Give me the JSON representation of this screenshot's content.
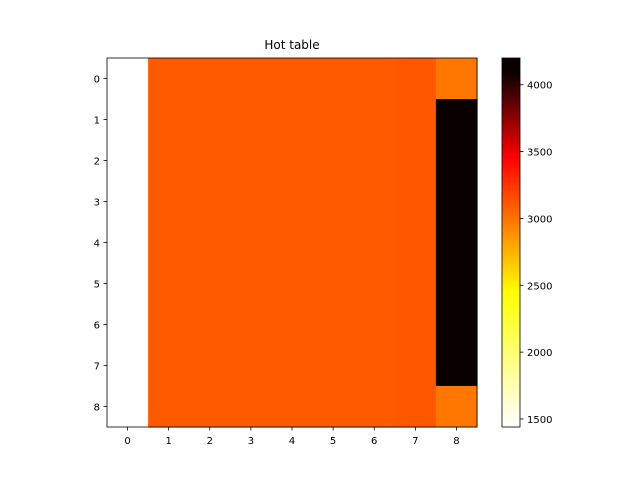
{
  "chart_data": {
    "type": "heatmap",
    "title": "Hot table",
    "xlabel": "",
    "ylabel": "",
    "colormap": "hot_r",
    "x_ticks": [
      "0",
      "1",
      "2",
      "3",
      "4",
      "5",
      "6",
      "7",
      "8"
    ],
    "y_ticks": [
      "0",
      "1",
      "2",
      "3",
      "4",
      "5",
      "6",
      "7",
      "8"
    ],
    "values": [
      [
        1440,
        2820,
        2820,
        2820,
        2820,
        2820,
        2820,
        2830,
        2700
      ],
      [
        1440,
        2820,
        2820,
        2820,
        2820,
        2820,
        2820,
        2830,
        4200
      ],
      [
        1440,
        2820,
        2820,
        2820,
        2820,
        2820,
        2820,
        2830,
        4200
      ],
      [
        1440,
        2820,
        2820,
        2820,
        2820,
        2820,
        2820,
        2830,
        4200
      ],
      [
        1440,
        2820,
        2820,
        2820,
        2820,
        2820,
        2820,
        2830,
        4200
      ],
      [
        1440,
        2820,
        2820,
        2820,
        2820,
        2820,
        2820,
        2830,
        4200
      ],
      [
        1440,
        2820,
        2820,
        2820,
        2820,
        2820,
        2820,
        2830,
        4200
      ],
      [
        1440,
        2820,
        2820,
        2820,
        2820,
        2820,
        2820,
        2830,
        4200
      ],
      [
        1440,
        2820,
        2820,
        2820,
        2820,
        2820,
        2820,
        2830,
        2700
      ]
    ],
    "colorbar": {
      "range": [
        1440,
        4200
      ],
      "ticks": [
        1500,
        2000,
        2500,
        3000,
        3500,
        4000
      ],
      "tick_labels": [
        "1500",
        "2000",
        "2500",
        "3000",
        "3500",
        "4000"
      ]
    }
  }
}
